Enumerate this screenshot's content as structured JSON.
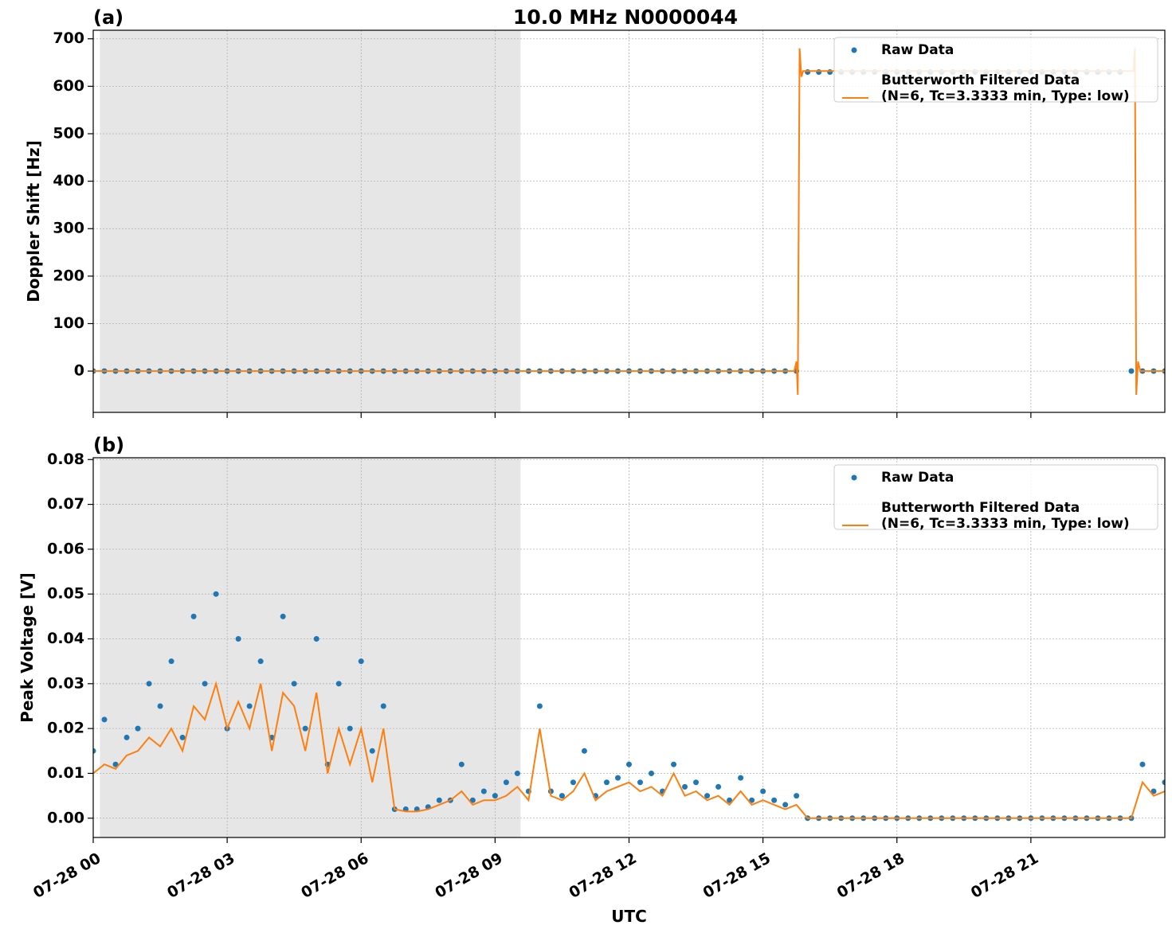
{
  "chart_data": [
    {
      "type": "scatter-line",
      "title": "10.0 MHz N0000044",
      "panel_label": "(a)",
      "ylabel": "Doppler Shift [Hz]",
      "xlim": [
        0,
        24
      ],
      "xticks": [
        0,
        3,
        6,
        9,
        12,
        15,
        18,
        21
      ],
      "ylim": [
        -87,
        718
      ],
      "yticks": [
        0,
        100,
        200,
        300,
        400,
        500,
        600,
        700
      ],
      "grid": true,
      "legend": "upper right",
      "shaded_span": [
        0.15,
        9.57
      ],
      "shade_color": "#e6e6e6",
      "x": [
        0,
        0.25,
        0.5,
        0.75,
        1,
        1.25,
        1.5,
        1.75,
        2,
        2.25,
        2.5,
        2.75,
        3,
        3.25,
        3.5,
        3.75,
        4,
        4.25,
        4.5,
        4.75,
        5,
        5.25,
        5.5,
        5.75,
        6,
        6.25,
        6.5,
        6.75,
        7,
        7.25,
        7.5,
        7.75,
        8,
        8.25,
        8.5,
        8.75,
        9,
        9.25,
        9.5,
        9.75,
        10,
        10.25,
        10.5,
        10.75,
        11,
        11.25,
        11.5,
        11.75,
        12,
        12.25,
        12.5,
        12.75,
        13,
        13.25,
        13.5,
        13.75,
        14,
        14.25,
        14.5,
        14.75,
        15,
        15.25,
        15.5,
        15.75,
        16,
        16.25,
        16.5,
        16.75,
        17,
        17.25,
        17.5,
        17.75,
        18,
        18.25,
        18.5,
        18.75,
        19,
        19.25,
        19.5,
        19.75,
        20,
        20.25,
        20.5,
        20.75,
        21,
        21.25,
        21.5,
        21.75,
        22,
        22.25,
        22.5,
        22.75,
        23,
        23.25,
        23.5,
        23.75,
        24
      ],
      "series": [
        {
          "name": "Raw Data",
          "kind": "points",
          "color": "#1f77b4",
          "values": [
            0,
            0,
            0,
            0,
            0,
            0,
            0,
            0,
            0,
            0,
            0,
            0,
            0,
            0,
            0,
            0,
            0,
            0,
            0,
            0,
            0,
            0,
            0,
            0,
            0,
            0,
            0,
            0,
            0,
            0,
            0,
            0,
            0,
            0,
            0,
            0,
            0,
            0,
            0,
            0,
            0,
            0,
            0,
            0,
            0,
            0,
            0,
            0,
            0,
            0,
            0,
            0,
            0,
            0,
            0,
            0,
            0,
            0,
            0,
            0,
            0,
            0,
            0,
            0,
            630,
            630,
            630,
            630,
            630,
            630,
            630,
            630,
            630,
            630,
            630,
            630,
            630,
            630,
            630,
            630,
            630,
            630,
            630,
            630,
            630,
            630,
            630,
            630,
            630,
            630,
            630,
            630,
            630,
            0,
            0,
            0,
            0
          ]
        },
        {
          "name": "Butterworth Filtered Data\n(N=6, Tc=3.3333 min, Type: low)",
          "kind": "line",
          "color": "#ff7f0e",
          "x": [
            0,
            15.7,
            15.75,
            15.78,
            15.82,
            15.86,
            15.9,
            23.3,
            23.33,
            23.36,
            23.4,
            23.45,
            24
          ],
          "values": [
            0,
            0,
            20,
            -50,
            680,
            620,
            632,
            632,
            680,
            -50,
            20,
            0,
            0
          ]
        }
      ]
    },
    {
      "type": "scatter-line",
      "panel_label": "(b)",
      "ylabel": "Peak Voltage [V]",
      "xlabel": "UTC",
      "xlim": [
        0,
        24
      ],
      "xticks": [
        {
          "value": 0,
          "label": "07-28 00"
        },
        {
          "value": 3,
          "label": "07-28 03"
        },
        {
          "value": 6,
          "label": "07-28 06"
        },
        {
          "value": 9,
          "label": "07-28 09"
        },
        {
          "value": 12,
          "label": "07-28 12"
        },
        {
          "value": 15,
          "label": "07-28 15"
        },
        {
          "value": 18,
          "label": "07-28 18"
        },
        {
          "value": 21,
          "label": "07-28 21"
        }
      ],
      "ylim": [
        -0.0043,
        0.0804
      ],
      "yticks": [
        {
          "value": 0,
          "label": "0.00"
        },
        0.01,
        0.02,
        0.03,
        0.04,
        0.05,
        0.06,
        0.07,
        0.08
      ],
      "grid": true,
      "legend": "upper right",
      "shaded_span": [
        0.15,
        9.57
      ],
      "shade_color": "#e6e6e6",
      "x": [
        0,
        0.25,
        0.5,
        0.75,
        1,
        1.25,
        1.5,
        1.75,
        2,
        2.25,
        2.5,
        2.75,
        3,
        3.25,
        3.5,
        3.75,
        4,
        4.25,
        4.5,
        4.75,
        5,
        5.25,
        5.5,
        5.75,
        6,
        6.25,
        6.5,
        6.75,
        7,
        7.25,
        7.5,
        7.75,
        8,
        8.25,
        8.5,
        8.75,
        9,
        9.25,
        9.5,
        9.75,
        10,
        10.25,
        10.5,
        10.75,
        11,
        11.25,
        11.5,
        11.75,
        12,
        12.25,
        12.5,
        12.75,
        13,
        13.25,
        13.5,
        13.75,
        14,
        14.25,
        14.5,
        14.75,
        15,
        15.25,
        15.5,
        15.75,
        16,
        16.25,
        16.5,
        16.75,
        17,
        17.25,
        17.5,
        17.75,
        18,
        18.25,
        18.5,
        18.75,
        19,
        19.25,
        19.5,
        19.75,
        20,
        20.25,
        20.5,
        20.75,
        21,
        21.25,
        21.5,
        21.75,
        22,
        22.25,
        22.5,
        22.75,
        23,
        23.25,
        23.5,
        23.75,
        24
      ],
      "series": [
        {
          "name": "Raw Data",
          "kind": "points",
          "color": "#1f77b4",
          "values": [
            0.015,
            0.022,
            0.012,
            0.018,
            0.02,
            0.03,
            0.025,
            0.035,
            0.018,
            0.045,
            0.03,
            0.05,
            0.02,
            0.04,
            0.025,
            0.035,
            0.018,
            0.045,
            0.03,
            0.02,
            0.04,
            0.012,
            0.03,
            0.02,
            0.035,
            0.015,
            0.025,
            0.002,
            0.002,
            0.002,
            0.0025,
            0.004,
            0.004,
            0.012,
            0.004,
            0.006,
            0.005,
            0.008,
            0.01,
            0.006,
            0.025,
            0.006,
            0.005,
            0.008,
            0.015,
            0.005,
            0.008,
            0.009,
            0.012,
            0.008,
            0.01,
            0.006,
            0.012,
            0.007,
            0.008,
            0.005,
            0.007,
            0.004,
            0.009,
            0.004,
            0.006,
            0.004,
            0.003,
            0.005,
            0,
            0,
            0,
            0,
            0,
            0,
            0,
            0,
            0,
            0,
            0,
            0,
            0,
            0,
            0,
            0,
            0,
            0,
            0,
            0,
            0,
            0,
            0,
            0,
            0,
            0,
            0,
            0,
            0,
            0,
            0.012,
            0.006,
            0.008
          ]
        },
        {
          "name": "Butterworth Filtered Data\n(N=6, Tc=3.3333 min, Type: low)",
          "kind": "line",
          "color": "#ff7f0e",
          "values": [
            0.01,
            0.012,
            0.011,
            0.014,
            0.015,
            0.018,
            0.016,
            0.02,
            0.015,
            0.025,
            0.022,
            0.03,
            0.02,
            0.026,
            0.02,
            0.03,
            0.015,
            0.028,
            0.025,
            0.015,
            0.028,
            0.01,
            0.02,
            0.012,
            0.02,
            0.008,
            0.02,
            0.002,
            0.0015,
            0.0015,
            0.002,
            0.003,
            0.004,
            0.006,
            0.003,
            0.004,
            0.004,
            0.005,
            0.007,
            0.004,
            0.02,
            0.005,
            0.004,
            0.006,
            0.01,
            0.004,
            0.006,
            0.007,
            0.008,
            0.006,
            0.007,
            0.005,
            0.01,
            0.005,
            0.006,
            0.004,
            0.005,
            0.003,
            0.006,
            0.003,
            0.004,
            0.003,
            0.002,
            0.003,
            0,
            0,
            0,
            0,
            0,
            0,
            0,
            0,
            0,
            0,
            0,
            0,
            0,
            0,
            0,
            0,
            0,
            0,
            0,
            0,
            0,
            0,
            0,
            0,
            0,
            0,
            0,
            0,
            0,
            0,
            0.008,
            0.005,
            0.006
          ]
        }
      ]
    }
  ]
}
